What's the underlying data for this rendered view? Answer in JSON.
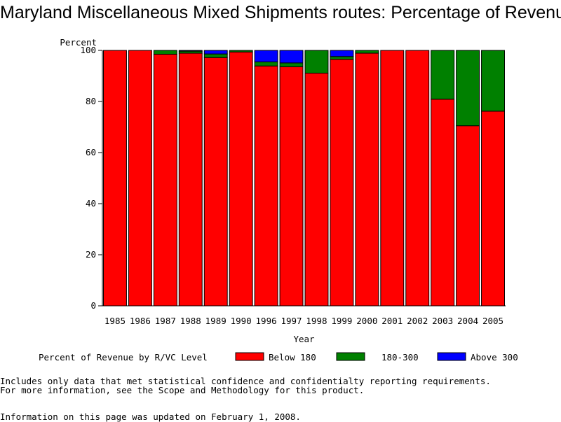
{
  "chart_data": {
    "type": "bar",
    "stacked": true,
    "title": "Maryland Miscellaneous Mixed Shipments routes: Percentage of Revenue",
    "xlabel": "Year",
    "ylabel": "Percent",
    "ylim": [
      0,
      100
    ],
    "yticks": [
      0,
      20,
      40,
      60,
      80,
      100
    ],
    "grid": false,
    "legend_position": "bottom",
    "legend_title": "Percent of Revenue by R/VC Level",
    "categories": [
      "1985",
      "1986",
      "1987",
      "1988",
      "1989",
      "1990",
      "1996",
      "1997",
      "1998",
      "1999",
      "2000",
      "2001",
      "2002",
      "2003",
      "2004",
      "2005"
    ],
    "series": [
      {
        "name": "Below 180",
        "color": "#ff0000",
        "values": [
          100,
          100,
          98.5,
          98.9,
          97.2,
          99.4,
          93.9,
          93.6,
          91.1,
          96.5,
          98.9,
          100,
          100,
          80.9,
          70.5,
          76.2
        ]
      },
      {
        "name": "180-300",
        "color": "#008000",
        "values": [
          0,
          0,
          1.5,
          0.8,
          1.4,
          0.6,
          1.6,
          1.5,
          8.9,
          1.1,
          1.1,
          0,
          0,
          19.1,
          29.5,
          23.8
        ]
      },
      {
        "name": "Above 300",
        "color": "#0000ff",
        "values": [
          0,
          0,
          0,
          0.3,
          1.4,
          0,
          4.5,
          4.9,
          0,
          2.4,
          0,
          0,
          0,
          0,
          0,
          0
        ]
      }
    ]
  },
  "notes": {
    "line1": "Includes only data that met statistical confidence and confidentialty reporting requirements.",
    "line2": "For more information, see the Scope and Methodology for this product.",
    "updated": "Information on this page was updated on February 1, 2008."
  }
}
